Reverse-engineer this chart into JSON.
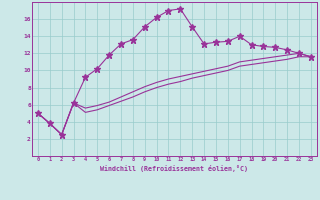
{
  "xlabel": "Windchill (Refroidissement éolien,°C)",
  "x": [
    0,
    1,
    2,
    3,
    4,
    5,
    6,
    7,
    8,
    9,
    10,
    11,
    12,
    13,
    14,
    15,
    16,
    17,
    18,
    19,
    20,
    21,
    22,
    23
  ],
  "line1": [
    5.0,
    3.8,
    2.5,
    6.2,
    9.2,
    10.2,
    11.8,
    13.1,
    13.6,
    15.1,
    16.2,
    17.0,
    17.2,
    15.1,
    13.1,
    13.3,
    13.4,
    14.0,
    13.0,
    12.8,
    12.7,
    12.4,
    12.0,
    11.6
  ],
  "line2": [
    5.0,
    3.8,
    2.5,
    6.2,
    5.6,
    5.9,
    6.3,
    6.9,
    7.5,
    8.1,
    8.6,
    9.0,
    9.3,
    9.6,
    9.9,
    10.2,
    10.5,
    11.0,
    11.2,
    11.4,
    11.6,
    11.8,
    12.0,
    11.6
  ],
  "line3": [
    5.0,
    3.8,
    2.5,
    6.2,
    5.1,
    5.4,
    5.9,
    6.4,
    6.9,
    7.5,
    8.0,
    8.4,
    8.7,
    9.1,
    9.4,
    9.7,
    10.0,
    10.5,
    10.7,
    10.9,
    11.1,
    11.3,
    11.6,
    11.6
  ],
  "line_color": "#993399",
  "bg_color": "#cce8e8",
  "grid_color": "#99cccc",
  "ylim": [
    0,
    18
  ],
  "xlim": [
    -0.5,
    23.5
  ],
  "yticks": [
    2,
    4,
    6,
    8,
    10,
    12,
    14,
    16
  ],
  "xticks": [
    0,
    1,
    2,
    3,
    4,
    5,
    6,
    7,
    8,
    9,
    10,
    11,
    12,
    13,
    14,
    15,
    16,
    17,
    18,
    19,
    20,
    21,
    22,
    23
  ],
  "marker_size": 3.0,
  "linewidth": 0.8
}
